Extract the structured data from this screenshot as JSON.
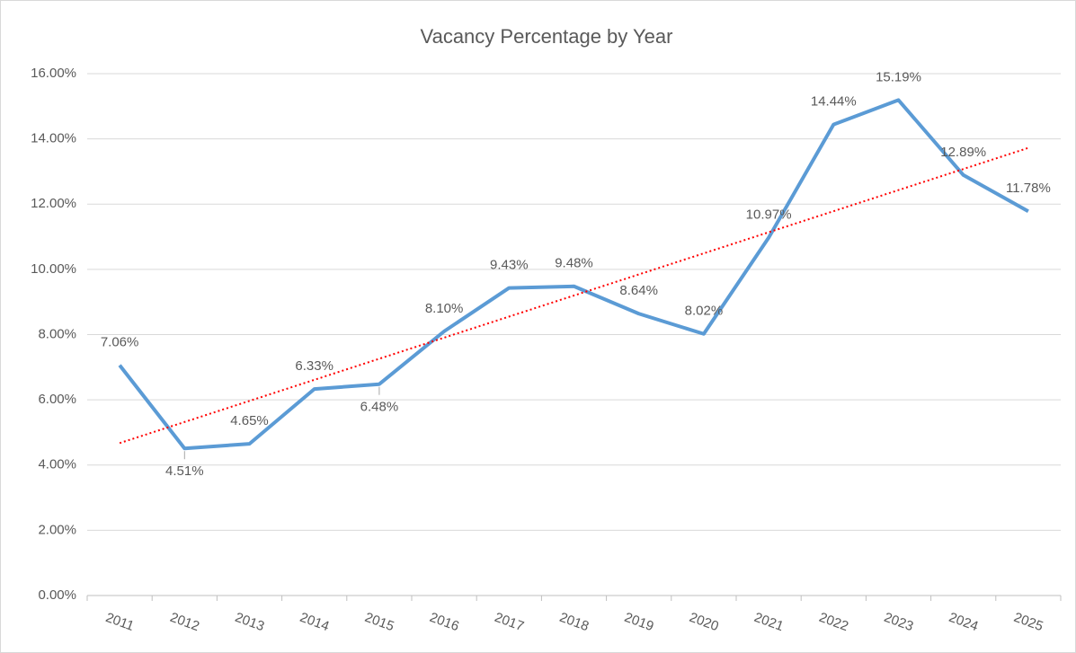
{
  "chart_data": {
    "type": "line",
    "title": "Vacancy Percentage by Year",
    "categories": [
      "2011",
      "2012",
      "2013",
      "2014",
      "2015",
      "2016",
      "2017",
      "2018",
      "2019",
      "2020",
      "2021",
      "2022",
      "2023",
      "2024",
      "2025"
    ],
    "series": [
      {
        "name": "Vacancy Percentage",
        "color": "#5b9bd5",
        "values": [
          7.06,
          4.51,
          4.65,
          6.33,
          6.48,
          8.1,
          9.43,
          9.48,
          8.64,
          8.02,
          10.97,
          14.44,
          15.19,
          12.89,
          11.78
        ],
        "value_labels": [
          "7.06%",
          "4.51%",
          "4.65%",
          "6.33%",
          "6.48%",
          "8.10%",
          "9.43%",
          "9.48%",
          "8.64%",
          "8.02%",
          "10.97%",
          "14.44%",
          "15.19%",
          "12.89%",
          "11.78%"
        ]
      }
    ],
    "trendline": {
      "type": "linear",
      "color": "#ff0000"
    },
    "ylim": [
      0,
      16
    ],
    "yticks": [
      {
        "value": 0,
        "label": "0.00%"
      },
      {
        "value": 2,
        "label": "2.00%"
      },
      {
        "value": 4,
        "label": "4.00%"
      },
      {
        "value": 6,
        "label": "6.00%"
      },
      {
        "value": 8,
        "label": "8.00%"
      },
      {
        "value": 10,
        "label": "10.00%"
      },
      {
        "value": 12,
        "label": "12.00%"
      },
      {
        "value": 14,
        "label": "14.00%"
      },
      {
        "value": 16,
        "label": "16.00%"
      }
    ],
    "grid": true
  }
}
